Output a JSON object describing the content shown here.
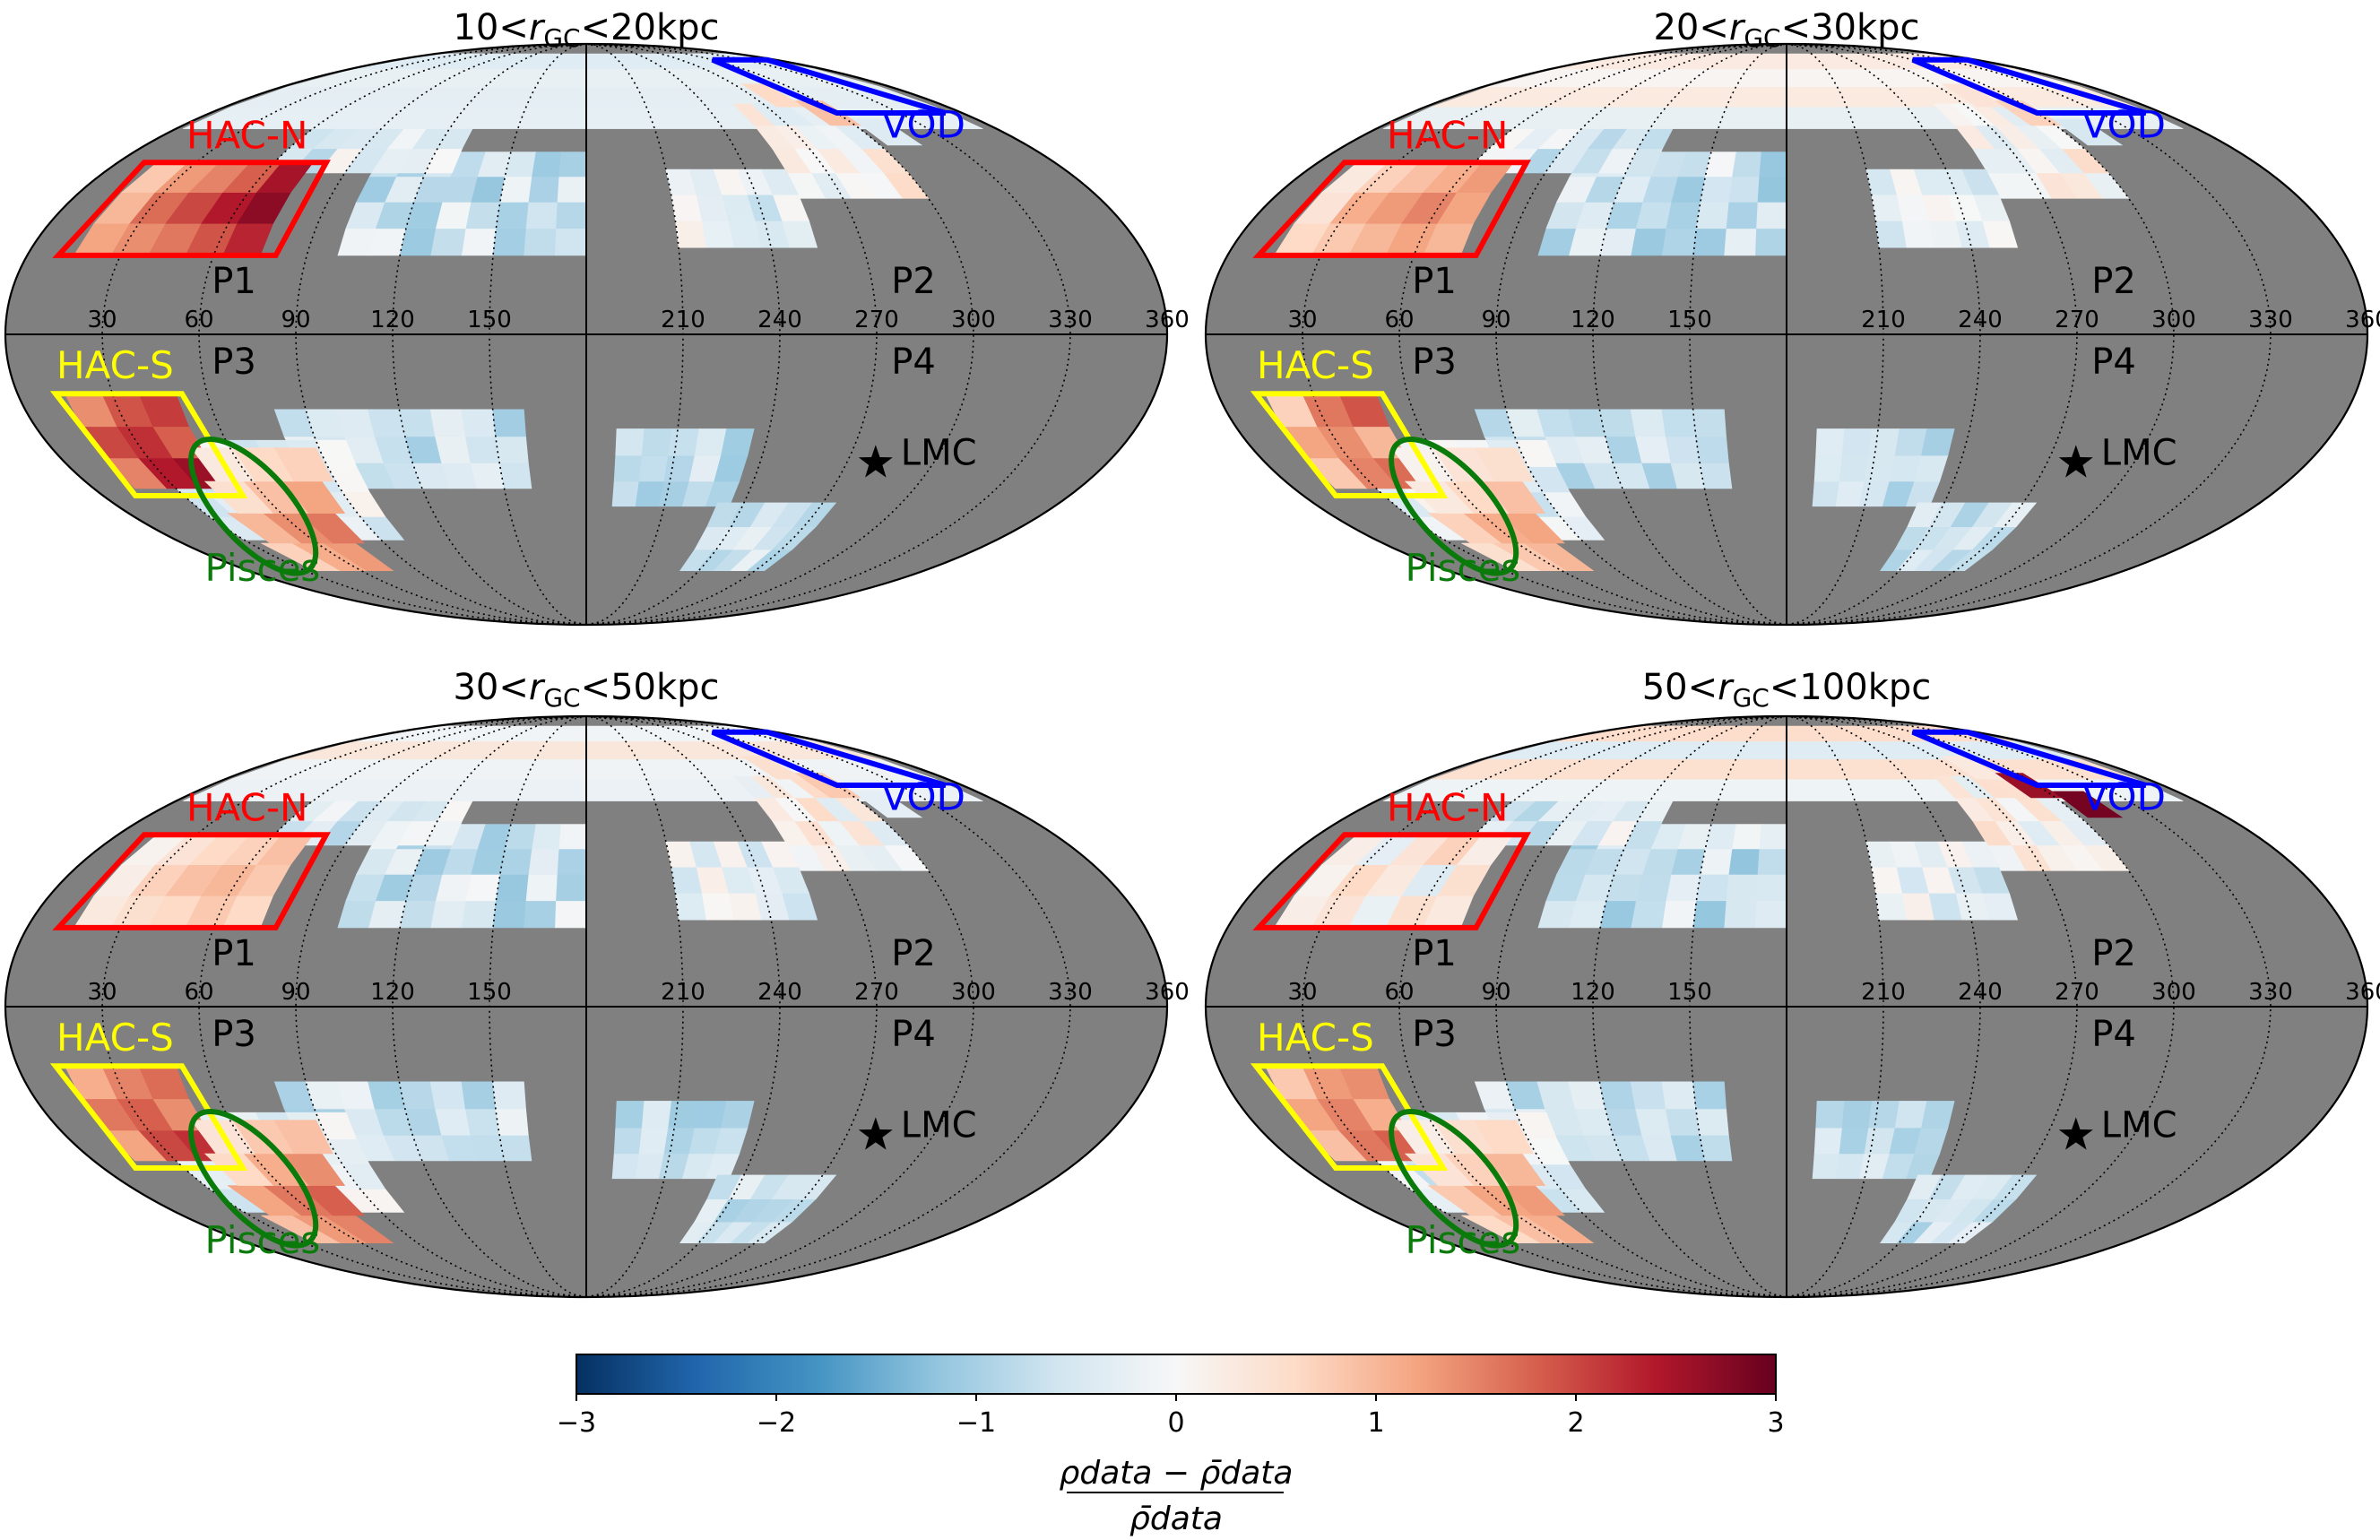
{
  "chart_data": [
    {
      "type": "heatmap",
      "projection": "mollweide",
      "title_parts": [
        "10<",
        "r",
        "GC",
        "<20kpc"
      ],
      "longitude_ticks": [
        "150",
        "120",
        "90",
        "60",
        "30",
        "360",
        "330",
        "300",
        "270",
        "240",
        "210"
      ],
      "quadrants": [
        "P1",
        "P2",
        "P3",
        "P4"
      ],
      "regions": [
        {
          "name": "HAC-N",
          "color": "#ff0000"
        },
        {
          "name": "HAC-S",
          "color": "#ffff00"
        },
        {
          "name": "VOD",
          "color": "#0000ff"
        },
        {
          "name": "Pisces",
          "color": "#0a7a0a"
        },
        {
          "name": "LMC",
          "color": "#000000",
          "marker": "star"
        }
      ],
      "cells": {
        "hacn": [
          1.2,
          1.4,
          1.6,
          1.9,
          2.3,
          1.0,
          1.7,
          2.0,
          2.4,
          2.7,
          0.8,
          1.3,
          1.5,
          1.8,
          2.5
        ],
        "hacs": [
          1.5,
          2.4,
          2.6,
          2.0,
          2.2,
          1.8,
          1.4,
          1.9,
          2.1
        ],
        "pisces": [
          0.7,
          1.1,
          1.3,
          1.0,
          1.4,
          1.6,
          0.5,
          0.9,
          1.2,
          0.3,
          0.6
        ],
        "vod": [
          0.6,
          0.9,
          -0.4
        ]
      }
    },
    {
      "type": "heatmap",
      "projection": "mollweide",
      "title_parts": [
        "20<",
        "r",
        "GC",
        "<30kpc"
      ],
      "longitude_ticks": [
        "150",
        "120",
        "90",
        "60",
        "30",
        "360",
        "330",
        "300",
        "270",
        "240",
        "210"
      ],
      "quadrants": [
        "P1",
        "P2",
        "P3",
        "P4"
      ],
      "regions": [
        {
          "name": "HAC-N",
          "color": "#ff0000"
        },
        {
          "name": "HAC-S",
          "color": "#ffff00"
        },
        {
          "name": "VOD",
          "color": "#0000ff"
        },
        {
          "name": "Pisces",
          "color": "#0a7a0a"
        },
        {
          "name": "LMC",
          "color": "#000000",
          "marker": "star"
        }
      ],
      "cells": {
        "hacn": [
          0.6,
          0.8,
          1.0,
          1.2,
          1.0,
          0.4,
          1.1,
          1.3,
          1.5,
          1.2,
          0.3,
          0.7,
          0.9,
          1.1,
          1.3
        ],
        "hacs": [
          0.8,
          1.5,
          1.7,
          1.2,
          1.4,
          1.0,
          0.7,
          1.6,
          1.9
        ],
        "pisces": [
          0.5,
          0.8,
          1.0,
          0.7,
          1.1,
          1.2,
          0.3,
          0.6,
          0.9,
          0.1,
          0.4
        ],
        "vod": [
          0.4,
          0.7,
          -0.5
        ]
      }
    },
    {
      "type": "heatmap",
      "projection": "mollweide",
      "title_parts": [
        "30<",
        "r",
        "GC",
        "<50kpc"
      ],
      "longitude_ticks": [
        "150",
        "120",
        "90",
        "60",
        "30",
        "360",
        "330",
        "300",
        "270",
        "240",
        "210"
      ],
      "quadrants": [
        "P1",
        "P2",
        "P3",
        "P4"
      ],
      "regions": [
        {
          "name": "HAC-N",
          "color": "#ff0000"
        },
        {
          "name": "HAC-S",
          "color": "#ffff00"
        },
        {
          "name": "VOD",
          "color": "#0000ff"
        },
        {
          "name": "Pisces",
          "color": "#0a7a0a"
        },
        {
          "name": "LMC",
          "color": "#000000",
          "marker": "star"
        }
      ],
      "cells": {
        "hacn": [
          0.3,
          0.5,
          0.6,
          0.8,
          0.6,
          0.2,
          0.7,
          0.9,
          1.0,
          0.8,
          0.1,
          0.4,
          0.6,
          0.7,
          0.9
        ],
        "hacs": [
          1.2,
          2.0,
          2.2,
          1.6,
          1.8,
          1.4,
          1.1,
          1.5,
          1.7
        ],
        "pisces": [
          0.9,
          1.3,
          1.5,
          1.2,
          1.6,
          1.8,
          0.6,
          1.1,
          1.4,
          0.4,
          0.8
        ],
        "vod": [
          0.5,
          0.8,
          -0.3
        ]
      }
    },
    {
      "type": "heatmap",
      "projection": "mollweide",
      "title_parts": [
        "50<",
        "r",
        "GC",
        "<100kpc"
      ],
      "longitude_ticks": [
        "150",
        "120",
        "90",
        "60",
        "30",
        "360",
        "330",
        "300",
        "270",
        "240",
        "210"
      ],
      "quadrants": [
        "P1",
        "P2",
        "P3",
        "P4"
      ],
      "regions": [
        {
          "name": "HAC-N",
          "color": "#ff0000"
        },
        {
          "name": "HAC-S",
          "color": "#ffff00"
        },
        {
          "name": "VOD",
          "color": "#0000ff"
        },
        {
          "name": "Pisces",
          "color": "#0a7a0a"
        },
        {
          "name": "LMC",
          "color": "#000000",
          "marker": "star"
        }
      ],
      "cells": {
        "hacn": [
          0.2,
          0.4,
          -0.2,
          0.5,
          0.3,
          0.1,
          0.6,
          0.3,
          -0.4,
          0.5,
          0.2,
          -0.3,
          0.4,
          0.7,
          0.2
        ],
        "hacs": [
          0.9,
          1.6,
          1.8,
          1.2,
          1.5,
          1.1,
          0.8,
          1.3,
          1.4
        ],
        "pisces": [
          0.6,
          0.9,
          1.1,
          0.8,
          1.2,
          1.3,
          0.4,
          0.7,
          1.0,
          0.2,
          0.5
        ],
        "vod": [
          0.3,
          2.6,
          2.9
        ]
      }
    }
  ],
  "colorbar": {
    "colormap": "RdBu_r",
    "vmin": -3,
    "vmax": 3,
    "ticks": [
      "−3",
      "−2",
      "−1",
      "0",
      "1",
      "2",
      "3"
    ],
    "label_numerator": "ρdata − ρ̄data",
    "label_denominator": "ρ̄data"
  },
  "colors": {
    "masked": "#808080",
    "hacn_line": "#ff0000",
    "hacs_line": "#ffff00",
    "vod_line": "#0000ff",
    "pisces_line": "#0a7a0a"
  }
}
